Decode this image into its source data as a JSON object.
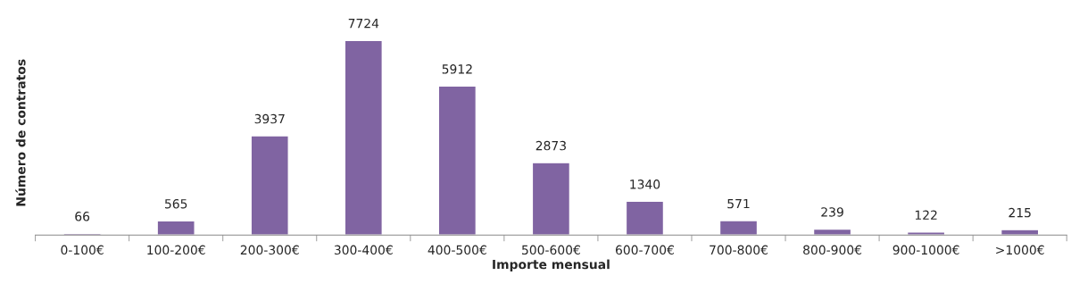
{
  "chart_data": {
    "type": "bar",
    "xlabel": "Importe mensual",
    "ylabel": "Número de contratos",
    "categories": [
      "0-100€",
      "100-200€",
      "200-300€",
      "300-400€",
      "400-500€",
      "500-600€",
      "600-700€",
      "700-800€",
      "800-900€",
      "900-1000€",
      ">1000€"
    ],
    "values": [
      66,
      565,
      3937,
      7724,
      5912,
      2873,
      1340,
      571,
      239,
      122,
      215
    ],
    "color": "#8064a2",
    "data_labels": true,
    "grid": false,
    "legend": false
  }
}
